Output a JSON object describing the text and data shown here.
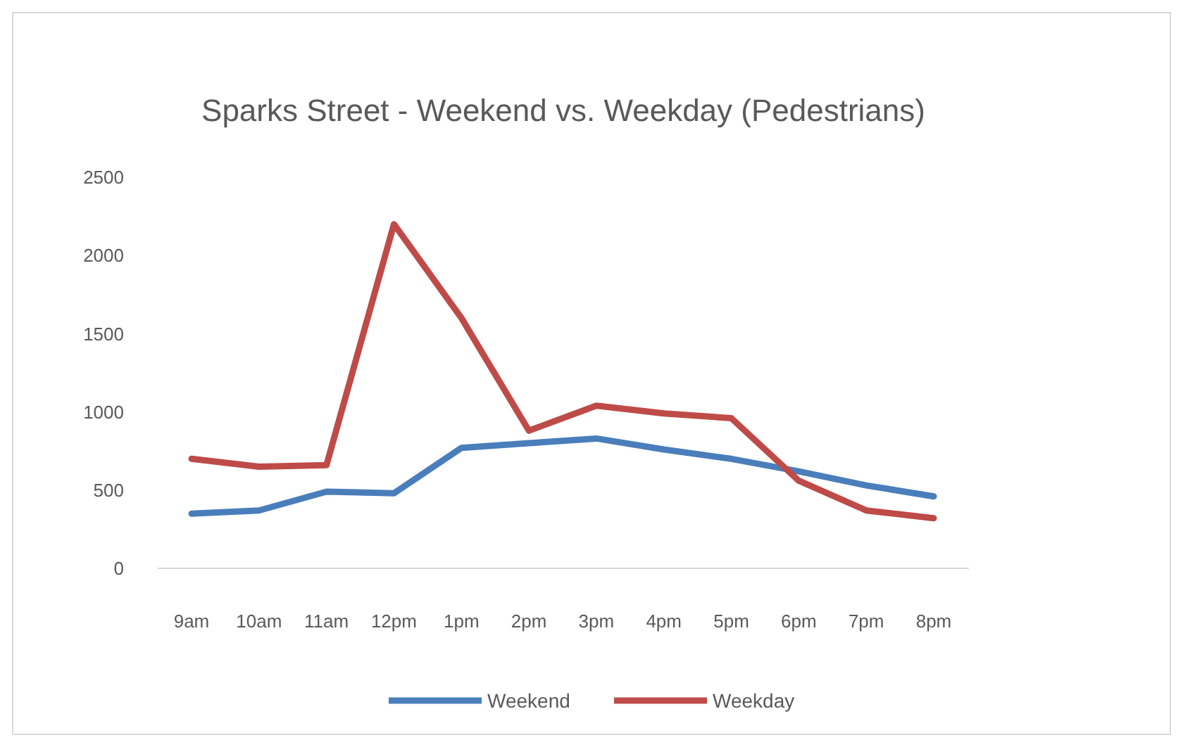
{
  "chart_data": {
    "type": "line",
    "title": "Sparks Street - Weekend vs. Weekday (Pedestrians)",
    "categories": [
      "9am",
      "10am",
      "11am",
      "12pm",
      "1pm",
      "2pm",
      "3pm",
      "4pm",
      "5pm",
      "6pm",
      "7pm",
      "8pm"
    ],
    "series": [
      {
        "name": "Weekend",
        "color": "#4a7ebb",
        "values": [
          350,
          370,
          490,
          480,
          770,
          800,
          830,
          760,
          700,
          620,
          530,
          460
        ]
      },
      {
        "name": "Weekday",
        "color": "#be4b48",
        "values": [
          700,
          650,
          660,
          2200,
          1600,
          880,
          1040,
          990,
          960,
          560,
          370,
          320
        ]
      }
    ],
    "ylim": [
      0,
      2500
    ],
    "yticks": [
      0,
      500,
      1000,
      1500,
      2000,
      2500
    ],
    "grid": false,
    "legend": "bottom",
    "line_style": "solid",
    "marker": "none"
  }
}
